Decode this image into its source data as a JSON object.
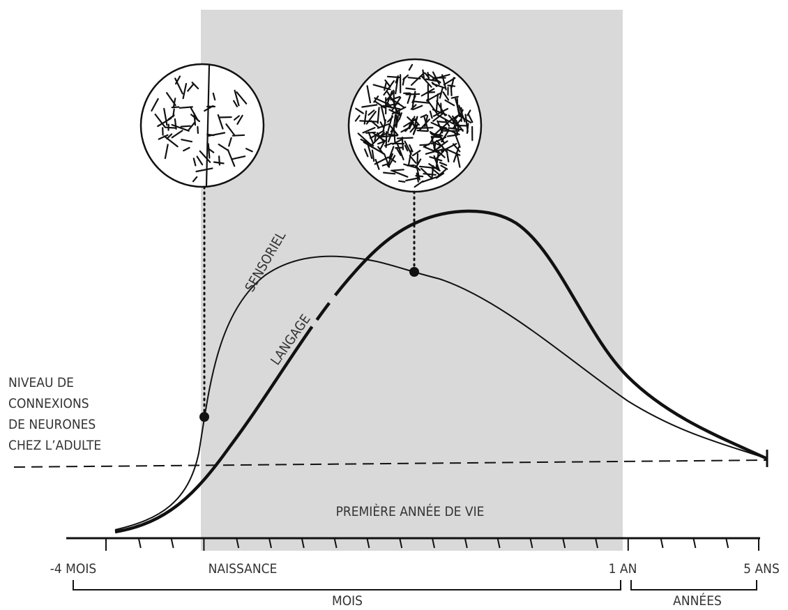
{
  "labels": {
    "adult_level": [
      "NIVEAU DE",
      "CONNEXIONS",
      "DE NEURONES",
      "CHEZ L’ADULTE"
    ],
    "sensoriel": "SENSORIEL",
    "langage": "LANGAGE",
    "first_year": "PREMIÈRE ANNÉE DE VIE"
  },
  "axis": {
    "ticks": [
      "-4 MOIS",
      "NAISSANCE",
      "1 AN",
      "5 ANS"
    ],
    "ranges": [
      "MOIS",
      "ANNÉES"
    ]
  }
}
